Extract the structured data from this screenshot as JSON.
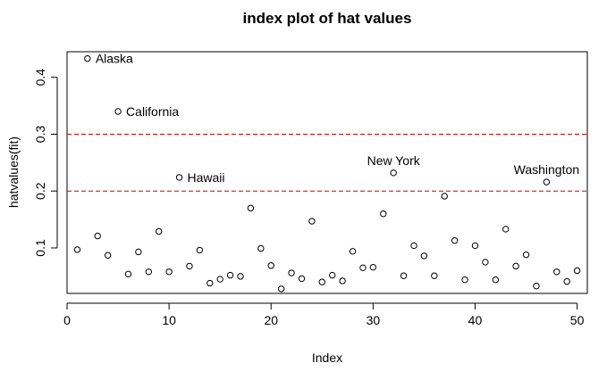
{
  "chart_data": {
    "type": "scatter",
    "title": "index plot of hat values",
    "xlabel": "Index",
    "ylabel": "hatvalues(fit)",
    "xlim": [
      0,
      51
    ],
    "ylim": [
      0.02,
      0.445
    ],
    "x_ticks": [
      0,
      10,
      20,
      30,
      40,
      50
    ],
    "x_tick_labels": [
      "0",
      "10",
      "20",
      "30",
      "40",
      "50"
    ],
    "y_ticks": [
      0.1,
      0.2,
      0.3,
      0.4
    ],
    "y_tick_labels": [
      "0.1",
      "0.2",
      "0.3",
      "0.4"
    ],
    "reference_lines": [
      {
        "y": 0.2,
        "style": "dashed",
        "color": "#cc0000"
      },
      {
        "y": 0.3,
        "style": "dashed",
        "color": "#cc0000"
      }
    ],
    "series": [
      {
        "name": "hat values",
        "marker": "open-circle",
        "x": [
          1,
          2,
          3,
          4,
          5,
          6,
          7,
          8,
          9,
          10,
          11,
          12,
          13,
          14,
          15,
          16,
          17,
          18,
          19,
          20,
          21,
          22,
          23,
          24,
          25,
          26,
          27,
          28,
          29,
          30,
          31,
          32,
          33,
          34,
          35,
          36,
          37,
          38,
          39,
          40,
          41,
          42,
          43,
          44,
          45,
          46,
          47,
          48,
          49,
          50
        ],
        "y": [
          0.097,
          0.433,
          0.121,
          0.087,
          0.34,
          0.054,
          0.093,
          0.058,
          0.129,
          0.058,
          0.224,
          0.068,
          0.096,
          0.038,
          0.045,
          0.052,
          0.05,
          0.17,
          0.099,
          0.069,
          0.028,
          0.056,
          0.046,
          0.147,
          0.04,
          0.052,
          0.042,
          0.094,
          0.065,
          0.066,
          0.16,
          0.232,
          0.051,
          0.104,
          0.086,
          0.051,
          0.191,
          0.113,
          0.044,
          0.104,
          0.075,
          0.044,
          0.133,
          0.068,
          0.088,
          0.033,
          0.216,
          0.058,
          0.041,
          0.06
        ]
      }
    ],
    "annotations": [
      {
        "text": "Alaska",
        "x": 2,
        "y": 0.433,
        "pos": "right"
      },
      {
        "text": "California",
        "x": 5,
        "y": 0.34,
        "pos": "right"
      },
      {
        "text": "Hawaii",
        "x": 11,
        "y": 0.224,
        "pos": "right"
      },
      {
        "text": "New York",
        "x": 32,
        "y": 0.232,
        "pos": "top"
      },
      {
        "text": "Washington",
        "x": 47,
        "y": 0.216,
        "pos": "top"
      }
    ],
    "colors": {
      "points": "#000000",
      "axis": "#000000",
      "reference": "#cc0000"
    }
  }
}
